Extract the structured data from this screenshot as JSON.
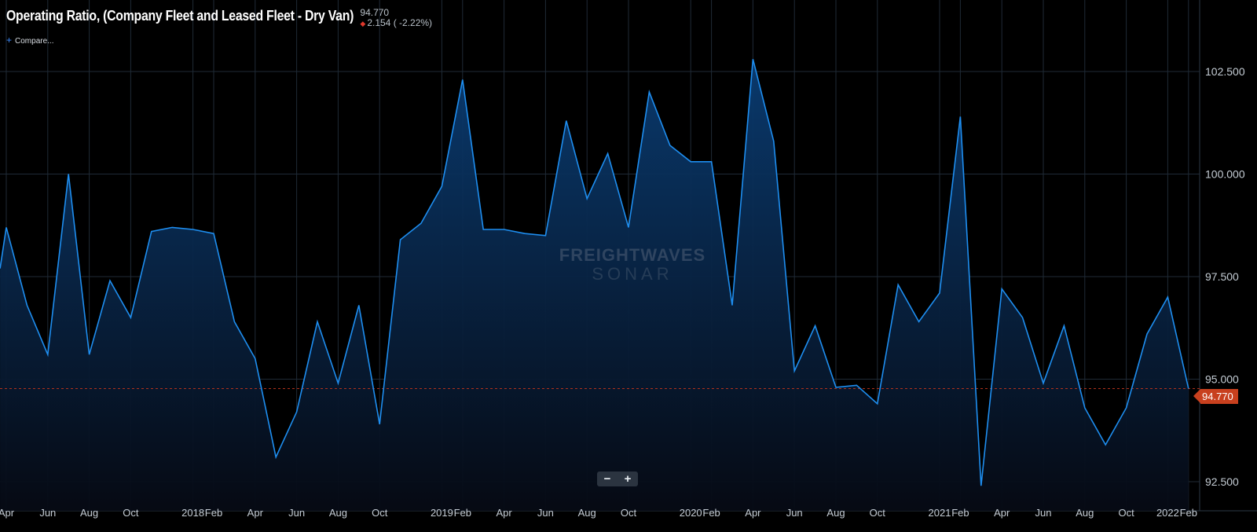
{
  "header": {
    "title": "Operating Ratio, (Company Fleet and Leased Fleet - Dry Van)",
    "last_value": "94.770",
    "change": "2.154 ( -2.22%)",
    "compare_label": "Compare..."
  },
  "controls": {
    "zoom_out": "−",
    "zoom_in": "+"
  },
  "watermark": {
    "line1": "FREIGHTWAVES",
    "line2": "SONAR"
  },
  "last_value_tag": "94.770",
  "colors": {
    "line": "#1e8ef0",
    "fill_top": "#0a3c72",
    "grid": "#1f2a36",
    "last_tag": "#c8401e",
    "ref_line": "#b0321c"
  },
  "chart_data": {
    "type": "area",
    "title": "Operating Ratio, (Company Fleet and Leased Fleet - Dry Van)",
    "ylim": [
      92.2,
      104.1
    ],
    "yticks": [
      92.5,
      95.0,
      97.5,
      100.0,
      102.5
    ],
    "ytick_labels": [
      "92.500",
      "95.000",
      "97.500",
      "100.000",
      "102.500"
    ],
    "reference_line": 94.77,
    "x_range": [
      -0.25,
      59.5
    ],
    "xticks": [
      {
        "x": 0,
        "label": "Apr"
      },
      {
        "x": 2,
        "label": "Jun"
      },
      {
        "x": 4,
        "label": "Aug"
      },
      {
        "x": 6,
        "label": "Oct"
      },
      {
        "x": 9,
        "label": "2018"
      },
      {
        "x": 10,
        "label": "Feb"
      },
      {
        "x": 12,
        "label": "Apr"
      },
      {
        "x": 14,
        "label": "Jun"
      },
      {
        "x": 16,
        "label": "Aug"
      },
      {
        "x": 18,
        "label": "Oct"
      },
      {
        "x": 21,
        "label": "2019"
      },
      {
        "x": 22,
        "label": "Feb"
      },
      {
        "x": 24,
        "label": "Apr"
      },
      {
        "x": 26,
        "label": "Jun"
      },
      {
        "x": 28,
        "label": "Aug"
      },
      {
        "x": 30,
        "label": "Oct"
      },
      {
        "x": 33,
        "label": "2020"
      },
      {
        "x": 34,
        "label": "Feb"
      },
      {
        "x": 36,
        "label": "Apr"
      },
      {
        "x": 38,
        "label": "Jun"
      },
      {
        "x": 40,
        "label": "Aug"
      },
      {
        "x": 42,
        "label": "Oct"
      },
      {
        "x": 45,
        "label": "2021"
      },
      {
        "x": 46,
        "label": "Feb"
      },
      {
        "x": 48,
        "label": "Apr"
      },
      {
        "x": 50,
        "label": "Jun"
      },
      {
        "x": 52,
        "label": "Aug"
      },
      {
        "x": 54,
        "label": "Oct"
      },
      {
        "x": 56,
        "label": "2022"
      },
      {
        "x": 57,
        "label": "Feb"
      }
    ],
    "series": [
      {
        "x": [
          -0.3,
          0,
          1,
          2,
          3,
          4,
          5,
          6,
          7,
          8,
          9,
          10,
          11,
          12,
          13,
          14,
          15,
          16,
          17,
          18,
          19,
          20,
          21,
          22,
          23,
          24,
          25,
          26,
          27,
          28,
          29,
          30,
          31,
          32,
          33,
          34,
          35,
          36,
          37,
          38,
          39,
          40,
          41,
          42,
          43,
          44,
          45,
          46,
          47,
          48,
          49,
          50,
          51,
          52,
          53,
          54,
          55,
          56,
          57
        ],
        "y": [
          97.7,
          98.7,
          96.8,
          95.6,
          100.0,
          95.6,
          97.4,
          96.5,
          98.6,
          98.7,
          98.65,
          98.55,
          96.4,
          95.5,
          93.1,
          94.2,
          96.4,
          94.9,
          96.8,
          93.9,
          98.4,
          98.8,
          99.7,
          102.3,
          98.65,
          98.65,
          98.55,
          98.5,
          101.3,
          99.4,
          100.5,
          98.7,
          102.0,
          100.7,
          100.3,
          100.3,
          96.8,
          102.8,
          100.8,
          95.2,
          96.3,
          94.8,
          94.85,
          94.4,
          97.3,
          96.4,
          97.1,
          101.4,
          92.4,
          97.2,
          96.5,
          94.9,
          96.3,
          94.3,
          93.4,
          94.3,
          96.1,
          97.0,
          94.77
        ]
      }
    ]
  }
}
